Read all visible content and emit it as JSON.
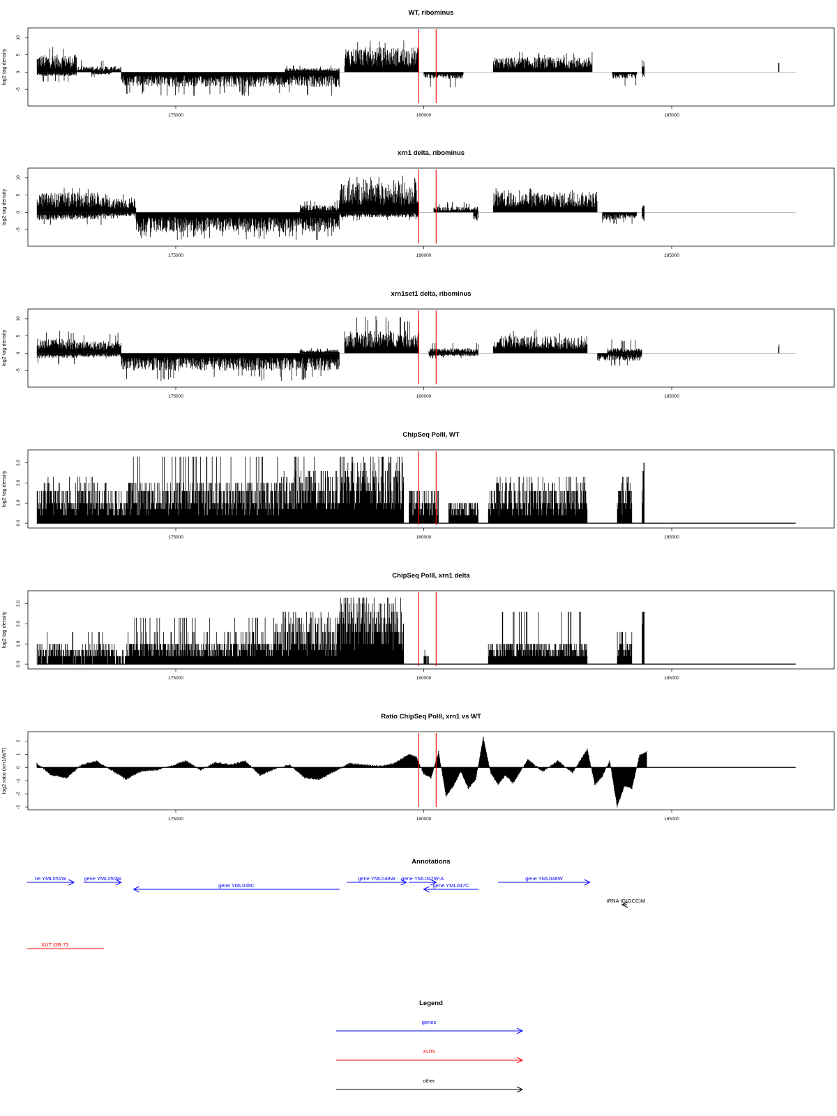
{
  "colors": {
    "gene": "#0000ff",
    "xut": "#ff0000",
    "other": "#000000",
    "marker": "#ff0000",
    "bar": "#000000",
    "baseline": "#b0b0b0"
  },
  "chart_data": [
    {
      "id": "wt",
      "type": "bar",
      "title": "WT, ribominus",
      "ylabel": "log2 tag density",
      "xlim": [
        172000,
        188000
      ],
      "ylim": [
        -9,
        12
      ],
      "yticks": [
        "-5",
        "0",
        "5",
        "10"
      ],
      "xticks": [
        "175000",
        "180000",
        "185000"
      ],
      "red_lines": [
        179900,
        180250
      ],
      "segments": [
        {
          "x": [
            172200,
            173000
          ],
          "sign": 1,
          "avg": 3.5,
          "peak": 8
        },
        {
          "x": [
            172200,
            173000
          ],
          "sign": -1,
          "avg": 0.8,
          "peak": 3
        },
        {
          "x": [
            173000,
            173900
          ],
          "sign": 1,
          "avg": 1.2,
          "peak": 3.5
        },
        {
          "x": [
            173300,
            173700
          ],
          "sign": -1,
          "avg": 0.5,
          "peak": 1.5
        },
        {
          "x": [
            173900,
            178300
          ],
          "sign": -1,
          "avg": 3,
          "peak": 7
        },
        {
          "x": [
            177200,
            178300
          ],
          "sign": 1,
          "avg": 0.8,
          "peak": 2
        },
        {
          "x": [
            178400,
            179900
          ],
          "sign": 1,
          "avg": 5,
          "peak": 10.5
        },
        {
          "x": [
            180000,
            180800
          ],
          "sign": -1,
          "avg": 1.3,
          "peak": 4.5
        },
        {
          "x": [
            181400,
            183400
          ],
          "sign": 1,
          "avg": 3,
          "peak": 6
        },
        {
          "x": [
            183800,
            184300
          ],
          "sign": -1,
          "avg": 1.3,
          "peak": 4
        },
        {
          "x": [
            184400,
            184450
          ],
          "sign": 1,
          "avg": 2.5,
          "peak": 3.5
        },
        {
          "x": [
            184400,
            184450
          ],
          "sign": -1,
          "avg": 1,
          "peak": 1.5
        },
        {
          "x": [
            187150,
            187170
          ],
          "sign": 1,
          "avg": 2.5,
          "peak": 2.7
        }
      ]
    },
    {
      "id": "xrn1",
      "type": "bar",
      "title": "xrn1 delta, ribominus",
      "ylabel": "log2 tag density",
      "xlim": [
        172000,
        188000
      ],
      "ylim": [
        -9,
        12
      ],
      "yticks": [
        "-5",
        "0",
        "5",
        "10"
      ],
      "xticks": [
        "175000",
        "180000",
        "185000"
      ],
      "red_lines": [
        179900,
        180250
      ],
      "segments": [
        {
          "x": [
            172200,
            173500
          ],
          "sign": 1,
          "avg": 4,
          "peak": 7.5
        },
        {
          "x": [
            172200,
            173500
          ],
          "sign": -1,
          "avg": 1.5,
          "peak": 4
        },
        {
          "x": [
            173500,
            174200
          ],
          "sign": 1,
          "avg": 3,
          "peak": 6
        },
        {
          "x": [
            173500,
            174200
          ],
          "sign": -1,
          "avg": 0.8,
          "peak": 2
        },
        {
          "x": [
            174200,
            178300
          ],
          "sign": -1,
          "avg": 4,
          "peak": 8
        },
        {
          "x": [
            177500,
            178300
          ],
          "sign": 1,
          "avg": 1.5,
          "peak": 3.5
        },
        {
          "x": [
            178300,
            179900
          ],
          "sign": 1,
          "avg": 6,
          "peak": 11
        },
        {
          "x": [
            178300,
            179900
          ],
          "sign": -1,
          "avg": 1,
          "peak": 2.5
        },
        {
          "x": [
            180200,
            181100
          ],
          "sign": 1,
          "avg": 1.2,
          "peak": 3
        },
        {
          "x": [
            181000,
            181100
          ],
          "sign": -1,
          "avg": 1.5,
          "peak": 2.5
        },
        {
          "x": [
            181400,
            183500
          ],
          "sign": 1,
          "avg": 4,
          "peak": 7
        },
        {
          "x": [
            183600,
            184300
          ],
          "sign": -1,
          "avg": 1.5,
          "peak": 3.5
        },
        {
          "x": [
            184400,
            184450
          ],
          "sign": 1,
          "avg": 1.5,
          "peak": 2.5
        },
        {
          "x": [
            184400,
            184450
          ],
          "sign": -1,
          "avg": 2,
          "peak": 3.5
        }
      ]
    },
    {
      "id": "xrn1set1",
      "type": "bar",
      "title": "xrn1set1 delta, ribominus",
      "ylabel": "log2 tag density",
      "xlim": [
        172000,
        188000
      ],
      "ylim": [
        -9,
        12
      ],
      "yticks": [
        "-5",
        "0",
        "5",
        "10"
      ],
      "xticks": [
        "175000",
        "180000",
        "185000"
      ],
      "red_lines": [
        179900,
        180250
      ],
      "segments": [
        {
          "x": [
            172200,
            173000
          ],
          "sign": 1,
          "avg": 3,
          "peak": 6.5
        },
        {
          "x": [
            172200,
            173000
          ],
          "sign": -1,
          "avg": 1,
          "peak": 3.5
        },
        {
          "x": [
            173000,
            173900
          ],
          "sign": 1,
          "avg": 2.5,
          "peak": 6
        },
        {
          "x": [
            173000,
            173900
          ],
          "sign": -1,
          "avg": 0.7,
          "peak": 1.5
        },
        {
          "x": [
            173900,
            178300
          ],
          "sign": -1,
          "avg": 3.5,
          "peak": 8
        },
        {
          "x": [
            177500,
            178300
          ],
          "sign": 1,
          "avg": 0.7,
          "peak": 1.5
        },
        {
          "x": [
            178400,
            179900
          ],
          "sign": 1,
          "avg": 4.5,
          "peak": 11
        },
        {
          "x": [
            180100,
            181100
          ],
          "sign": 1,
          "avg": 1,
          "peak": 3
        },
        {
          "x": [
            180100,
            181100
          ],
          "sign": -1,
          "avg": 0.6,
          "peak": 1.5
        },
        {
          "x": [
            181400,
            183300
          ],
          "sign": 1,
          "avg": 3.5,
          "peak": 7
        },
        {
          "x": [
            183500,
            184400
          ],
          "sign": -1,
          "avg": 1.5,
          "peak": 4
        },
        {
          "x": [
            183700,
            184400
          ],
          "sign": 1,
          "avg": 1,
          "peak": 4
        },
        {
          "x": [
            187150,
            187170
          ],
          "sign": 1,
          "avg": 2,
          "peak": 2.5
        }
      ]
    },
    {
      "id": "chip_wt",
      "type": "bar",
      "title": "ChipSeq PolII, WT",
      "ylabel": "log2 tag density",
      "xlim": [
        172000,
        188000
      ],
      "ylim": [
        -0.1,
        3.5
      ],
      "yticks": [
        "0.0",
        "1.0",
        "2.0",
        "3.0"
      ],
      "xticks": [
        "175000",
        "180000",
        "185000"
      ],
      "red_lines": [
        179900,
        180250
      ],
      "baseline_end": 187500,
      "segments": [
        {
          "x": [
            172200,
            173600
          ],
          "sign": 1,
          "avg": 1.1,
          "peak": 2.3
        },
        {
          "x": [
            173600,
            174000
          ],
          "sign": 1,
          "avg": 0.8,
          "peak": 1.6
        },
        {
          "x": [
            174000,
            177100
          ],
          "sign": 1,
          "avg": 1.2,
          "peak": 3.3
        },
        {
          "x": [
            177100,
            178300
          ],
          "sign": 1,
          "avg": 1.5,
          "peak": 3.2
        },
        {
          "x": [
            178300,
            179600
          ],
          "sign": 1,
          "avg": 1.9,
          "peak": 3.2
        },
        {
          "x": [
            179700,
            180300
          ],
          "sign": 1,
          "avg": 0.9,
          "peak": 1.6
        },
        {
          "x": [
            180500,
            181100
          ],
          "sign": 1,
          "avg": 0.7,
          "peak": 1
        },
        {
          "x": [
            181300,
            183300
          ],
          "sign": 1,
          "avg": 1.1,
          "peak": 2.3
        },
        {
          "x": [
            183900,
            184200
          ],
          "sign": 1,
          "avg": 1.2,
          "peak": 2.3
        },
        {
          "x": [
            184400,
            184450
          ],
          "sign": 1,
          "avg": 2.6,
          "peak": 3
        }
      ]
    },
    {
      "id": "chip_xrn1",
      "type": "bar",
      "title": "ChipSeq PolII, xrn1 delta",
      "ylabel": "log2 tag density",
      "xlim": [
        172000,
        188000
      ],
      "ylim": [
        -0.1,
        3.5
      ],
      "yticks": [
        "0.0",
        "1.0",
        "2.0",
        "3.0"
      ],
      "xticks": [
        "175000",
        "180000",
        "185000"
      ],
      "red_lines": [
        179900,
        180250
      ],
      "baseline_end": 187500,
      "segments": [
        {
          "x": [
            172200,
            173800
          ],
          "sign": 1,
          "avg": 0.6,
          "peak": 1.7
        },
        {
          "x": [
            173800,
            174000
          ],
          "sign": 1,
          "avg": 0.3,
          "peak": 0.7
        },
        {
          "x": [
            174000,
            177000
          ],
          "sign": 1,
          "avg": 0.8,
          "peak": 2.4
        },
        {
          "x": [
            177000,
            178300
          ],
          "sign": 1,
          "avg": 1.3,
          "peak": 2.6
        },
        {
          "x": [
            178300,
            179600
          ],
          "sign": 1,
          "avg": 2,
          "peak": 3.3
        },
        {
          "x": [
            180000,
            180100
          ],
          "sign": 1,
          "avg": 0.4,
          "peak": 0.6
        },
        {
          "x": [
            181300,
            183300
          ],
          "sign": 1,
          "avg": 0.7,
          "peak": 2.5
        },
        {
          "x": [
            183900,
            184200
          ],
          "sign": 1,
          "avg": 0.8,
          "peak": 1.7
        },
        {
          "x": [
            184400,
            184450
          ],
          "sign": 1,
          "avg": 2.2,
          "peak": 2.6
        }
      ]
    },
    {
      "id": "ratio",
      "type": "area",
      "title": "Ratio ChipSeq PolII, xrn1 vs WT",
      "ylabel": "log2 ratio (xrn1/WT)",
      "xlim": [
        172000,
        188000
      ],
      "ylim": [
        -3,
        2.5
      ],
      "yticks": [
        "-3",
        "-2",
        "-1",
        "0",
        "1",
        "2"
      ],
      "xticks": [
        "175000",
        "180000",
        "185000"
      ],
      "red_lines": [
        179900,
        180250
      ],
      "baseline_end": 187500,
      "x": [
        172200,
        172500,
        172800,
        173100,
        173400,
        173700,
        174000,
        174300,
        174600,
        174900,
        175200,
        175500,
        175800,
        176100,
        176400,
        176700,
        177000,
        177300,
        177600,
        177900,
        178200,
        178500,
        178800,
        179100,
        179400,
        179700,
        179850,
        180000,
        180150,
        180300,
        180450,
        180600,
        180750,
        180900,
        181050,
        181200,
        181350,
        181500,
        181650,
        181800,
        181950,
        182100,
        182400,
        182700,
        183000,
        183300,
        183450,
        183600,
        183750,
        183900,
        184050,
        184200,
        184350,
        184500
      ],
      "values": [
        0.3,
        -0.6,
        -0.8,
        0.2,
        0.5,
        -0.2,
        -0.9,
        -0.3,
        -0.2,
        0.1,
        0.5,
        -0.2,
        0.4,
        0.2,
        0.5,
        -0.6,
        -0.1,
        0.2,
        -0.8,
        -0.9,
        -0.3,
        0.3,
        0.2,
        0.1,
        0.3,
        1,
        0.8,
        -0.5,
        -0.8,
        1.2,
        -2.2,
        -1.4,
        -0.3,
        -1.6,
        -0.9,
        2.3,
        -0.4,
        -1.3,
        -0.6,
        -1.2,
        -0.3,
        0.6,
        -0.3,
        0.5,
        -0.4,
        1.4,
        -1.3,
        -0.7,
        0.5,
        -3,
        -1.4,
        -1.6,
        0.9,
        1.2
      ]
    }
  ],
  "annotations": {
    "title": "Annotations",
    "genes": [
      {
        "label": "ne YML051W",
        "start": 172000,
        "end": 172950,
        "strand": "+",
        "row": 0
      },
      {
        "label": "gene YML050W",
        "start": 173150,
        "end": 173900,
        "strand": "+",
        "row": 0
      },
      {
        "label": "gene YML049C",
        "start": 174150,
        "end": 178300,
        "strand": "-",
        "row": 1
      },
      {
        "label": "gene YML048W",
        "start": 178450,
        "end": 179650,
        "strand": "+",
        "row": 0
      },
      {
        "label": "gene YML047W-A",
        "start": 179700,
        "end": 180250,
        "strand": "+",
        "row": 0
      },
      {
        "label": "gene YML047C",
        "start": 180000,
        "end": 181100,
        "strand": "-",
        "row": 1
      },
      {
        "label": "gene YML046W",
        "start": 181500,
        "end": 183350,
        "strand": "+",
        "row": 0
      }
    ],
    "others": [
      {
        "label": "tRNA tG(GCC)M",
        "start": 184000,
        "end": 184100,
        "strand": "-"
      }
    ],
    "xuts": [
      {
        "label": "XUT t3R-73",
        "start": 172000,
        "end": 173550
      }
    ]
  },
  "legend": {
    "title": "Legend",
    "items": [
      {
        "label": "genes",
        "kind": "gene"
      },
      {
        "label": "XUTs",
        "kind": "xut"
      },
      {
        "label": "other",
        "kind": "other"
      }
    ]
  }
}
